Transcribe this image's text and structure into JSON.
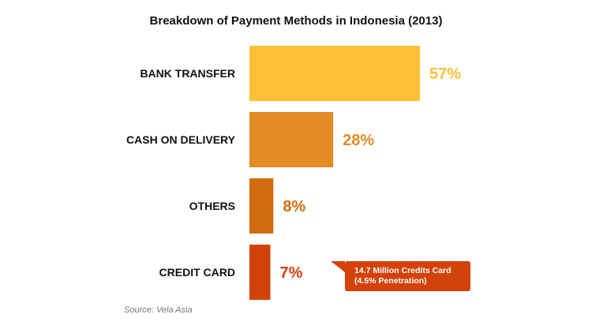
{
  "chart_data": {
    "type": "bar",
    "orientation": "horizontal",
    "title": "Breakdown of Payment Methods in Indonesia (2013)",
    "categories": [
      "BANK TRANSFER",
      "CASH ON DELIVERY",
      "OTHERS",
      "CREDIT CARD"
    ],
    "values": [
      57,
      28,
      8,
      7
    ],
    "value_labels": [
      "57%",
      "28%",
      "8%",
      "7%"
    ],
    "colors": [
      "#fcc034",
      "#e38b25",
      "#d26b10",
      "#d4420b"
    ],
    "annotation": {
      "category": "CREDIT CARD",
      "lines": [
        "14.7 Million Credits Card",
        "(4.5% Penetration)"
      ]
    },
    "source": "Source: Vela Asia",
    "grid": false,
    "legend": "none"
  }
}
